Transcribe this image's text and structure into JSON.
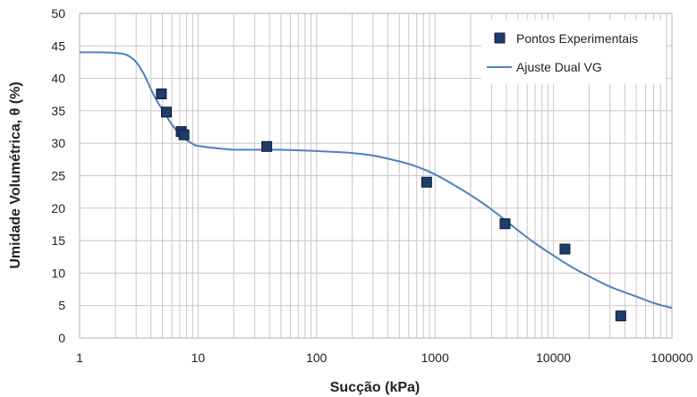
{
  "chart_data": {
    "type": "scatter",
    "xlabel": "Sucção (kPa)",
    "ylabel": "Umidade Volumétrica, θ (%)",
    "xscale": "log",
    "xlim": [
      1,
      100000
    ],
    "ylim": [
      0,
      50
    ],
    "grid": true,
    "legend_position": "top-right",
    "x_tick_labels": [
      "1",
      "10",
      "100",
      "1000",
      "10000",
      "100000"
    ],
    "y_tick_labels": [
      "0",
      "5",
      "10",
      "15",
      "20",
      "25",
      "30",
      "35",
      "40",
      "45",
      "50"
    ],
    "colors": {
      "points": "#1f3d6b",
      "fit": "#4f81bd",
      "grid": "#c8c8c8"
    },
    "series": [
      {
        "name": "Pontos Experimentais",
        "kind": "markers",
        "x": [
          4.9,
          5.4,
          7.2,
          7.6,
          38,
          850,
          3900,
          12500,
          37000
        ],
        "y": [
          37.6,
          34.8,
          31.8,
          31.3,
          29.5,
          24.0,
          17.6,
          13.7,
          3.4
        ]
      },
      {
        "name": "Ajuste Dual VG",
        "kind": "line",
        "x": [
          1,
          1.5,
          2,
          2.5,
          3,
          3.5,
          4,
          4.5,
          5,
          5.5,
          6,
          7,
          8,
          9,
          10,
          15,
          20,
          30,
          50,
          100,
          200,
          300,
          500,
          700,
          1000,
          1500,
          2000,
          3000,
          5000,
          7000,
          10000,
          15000,
          20000,
          30000,
          50000,
          70000,
          100000
        ],
        "y": [
          44.0,
          44.0,
          43.9,
          43.6,
          42.5,
          40.6,
          38.3,
          36.5,
          35.2,
          34.0,
          32.9,
          31.4,
          30.5,
          29.9,
          29.6,
          29.2,
          29.0,
          29.0,
          29.0,
          28.8,
          28.5,
          28.1,
          27.2,
          26.4,
          25.2,
          23.4,
          22.0,
          19.8,
          16.6,
          14.6,
          12.7,
          10.7,
          9.5,
          7.9,
          6.4,
          5.4,
          4.6
        ]
      }
    ]
  }
}
